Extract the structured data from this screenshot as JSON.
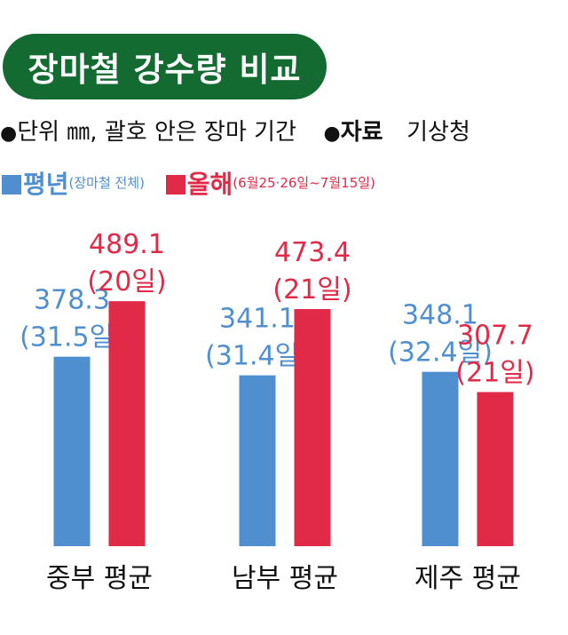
{
  "header": {
    "title": "장마철 강수량 비교",
    "unit_note": "단위 ㎜, 괄호 안은 장마 기간",
    "source_label": "자료",
    "source_value": "기상청"
  },
  "legend": {
    "normal_label": "평년",
    "normal_note": "(장마철 전체)",
    "this_year_label": "올해",
    "this_year_note": "(6월25·26일~7월15일)"
  },
  "colors": {
    "title_bg": "#146b32",
    "normal": "#4f8fd0",
    "this_year": "#e02a48",
    "normal_text": "#4f8fd0",
    "this_year_text": "#e02a48",
    "axis_text": "#111111"
  },
  "chart_data": {
    "type": "bar",
    "title": "장마철 강수량 비교",
    "categories": [
      "중부 평균",
      "남부 평균",
      "제주 평균"
    ],
    "series": [
      {
        "name": "평년",
        "values": [
          378.3,
          341.1,
          348.1
        ],
        "labels": [
          "378.3",
          "341.1",
          "348.1"
        ],
        "periods": [
          "(31.5일)",
          "(31.4일)",
          "(32.4일)"
        ]
      },
      {
        "name": "올해",
        "values": [
          489.1,
          473.4,
          307.7
        ],
        "labels": [
          "489.1",
          "473.4",
          "307.7"
        ],
        "periods": [
          "(20일)",
          "(21일)",
          "(21일)"
        ]
      }
    ],
    "grid": false,
    "legend_position": "top-left"
  }
}
